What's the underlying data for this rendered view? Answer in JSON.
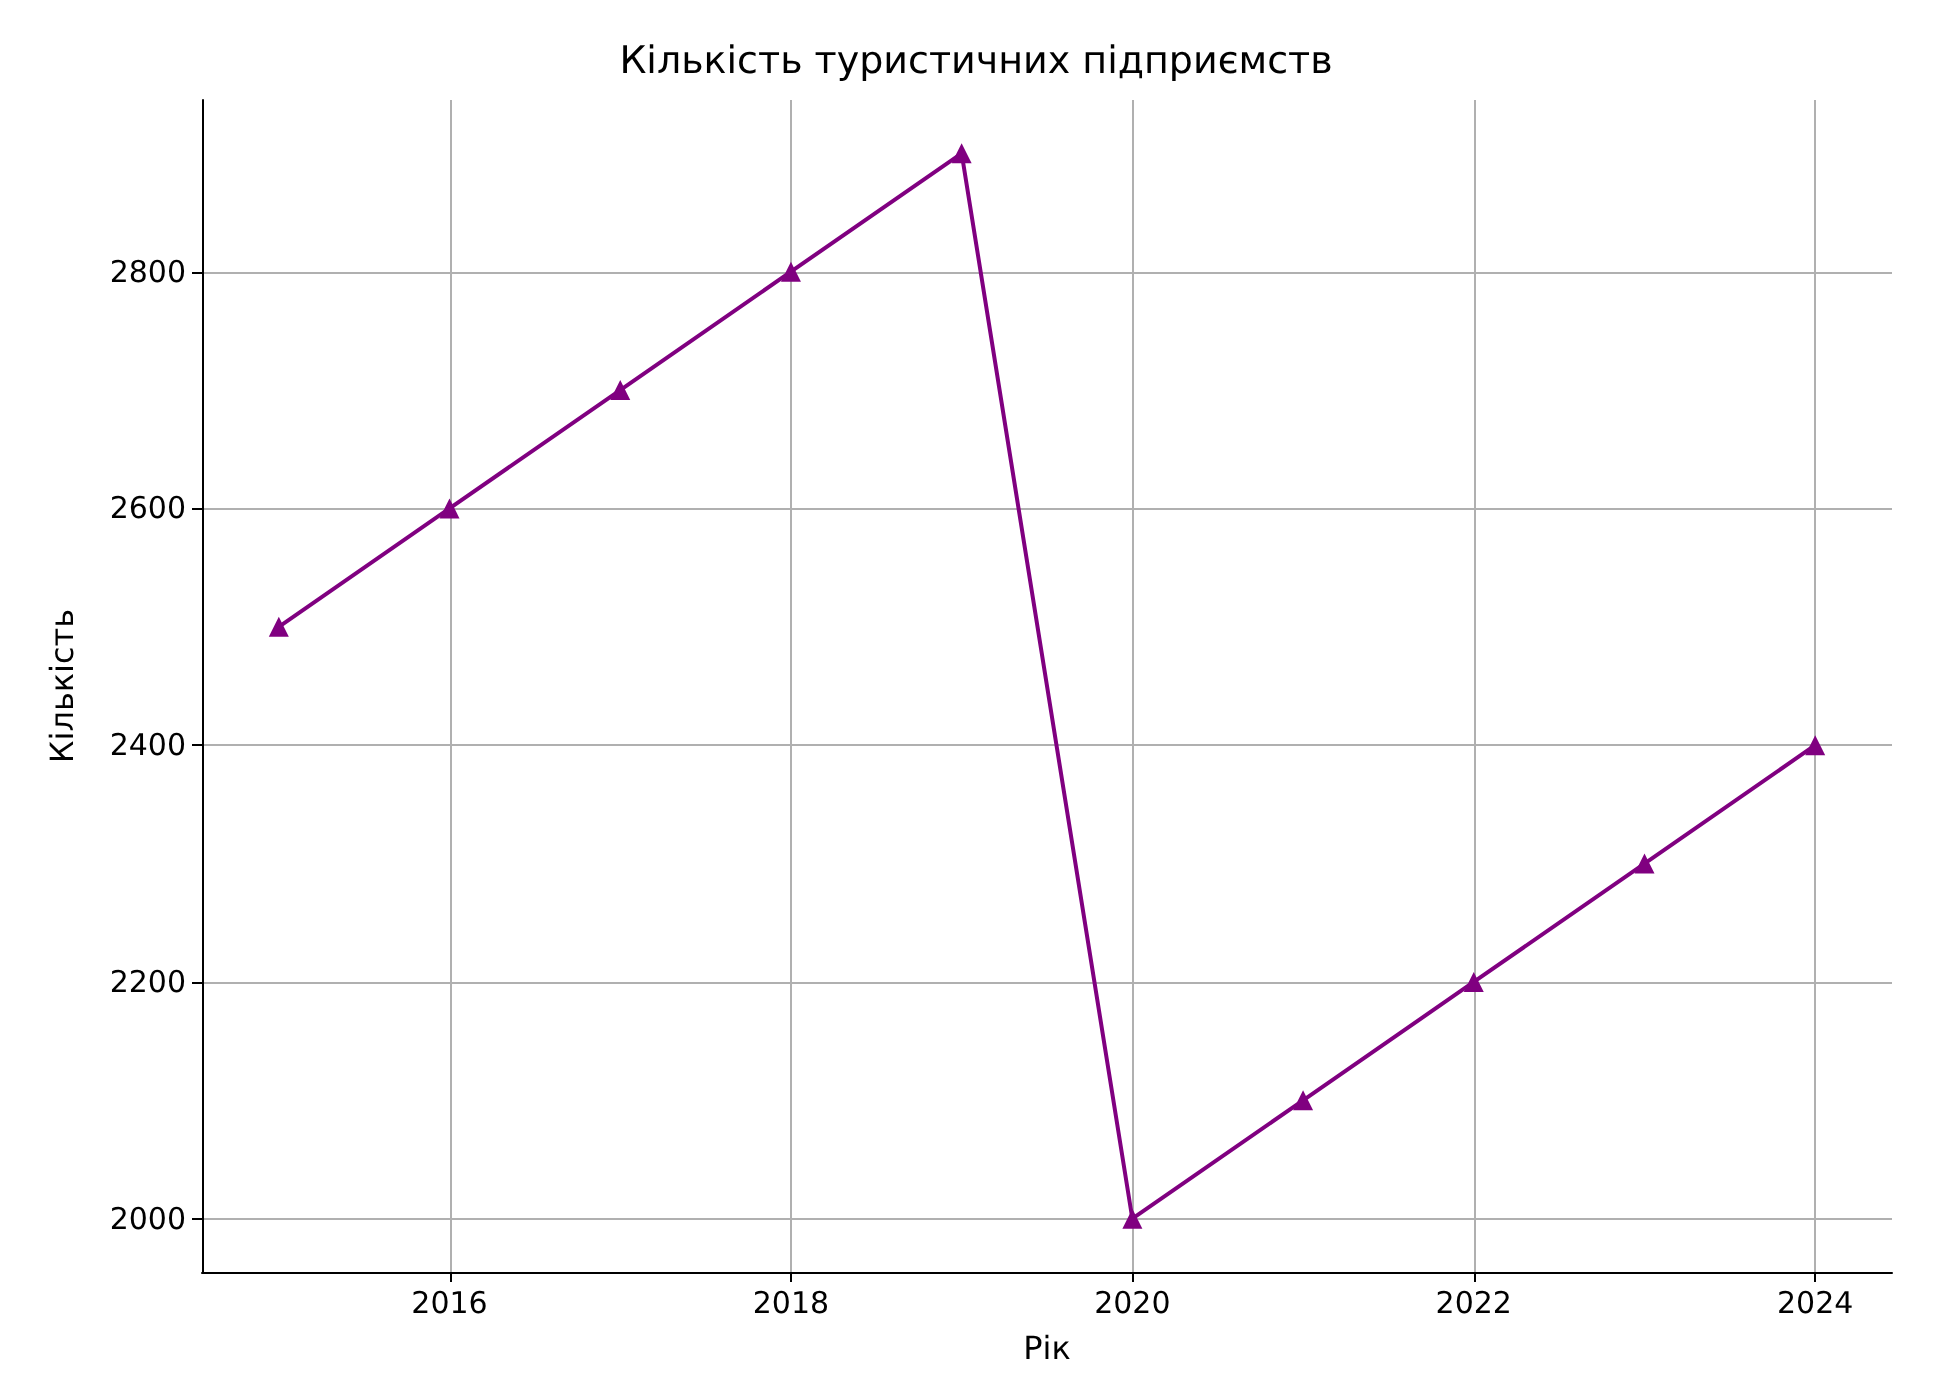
{
  "chart_data": {
    "type": "line",
    "title": "Кількість туристичних підприємств",
    "xlabel": "Рік",
    "ylabel": "Кількість",
    "x": [
      2015,
      2016,
      2017,
      2018,
      2019,
      2020,
      2021,
      2022,
      2023,
      2024
    ],
    "series": [
      {
        "color": "#800080",
        "values": [
          2500,
          2600,
          2700,
          2800,
          2900,
          2000,
          2100,
          2200,
          2300,
          2400
        ]
      }
    ],
    "xlim": [
      2014.55,
      2024.45
    ],
    "xticks": [
      2016,
      2018,
      2020,
      2022,
      2024
    ],
    "ylim": [
      1955,
      2945
    ],
    "yticks": [
      2000,
      2200,
      2400,
      2600,
      2800
    ],
    "grid": true,
    "marker": "triangle",
    "line_style": "solid"
  }
}
